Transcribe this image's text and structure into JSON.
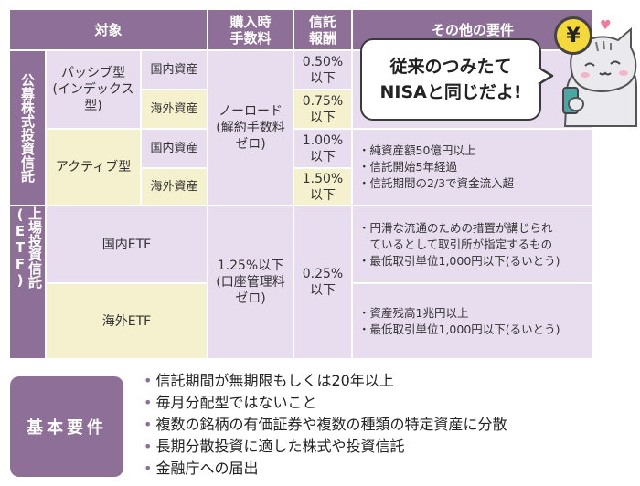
{
  "headers": {
    "target": "対象",
    "fee_line1": "購入時",
    "fee_line2": "手数料",
    "trust_line1": "信託",
    "trust_line2": "報酬",
    "other": "その他の要件"
  },
  "public_fund": {
    "label": "公募株式投資信託",
    "passive": {
      "label_line1": "パッシブ型",
      "label_line2": "(インデックス",
      "label_line3": "型)",
      "domestic": "国内資産",
      "foreign": "海外資産",
      "domestic_fee_line1": "0.50%",
      "domestic_fee_line2": "以下",
      "foreign_fee_line1": "0.75%",
      "foreign_fee_line2": "以下"
    },
    "active": {
      "label": "アクティブ型",
      "domestic": "国内資産",
      "foreign": "海外資産",
      "domestic_fee_line1": "1.00%",
      "domestic_fee_line2": "以下",
      "foreign_fee_line1": "1.50%",
      "foreign_fee_line2": "以下",
      "requirements": [
        "・純資産額50億円以上",
        "・信託開始5年経過",
        "・信託期間の2/3で資金流入超"
      ]
    },
    "purchase_fee_line1": "ノーロード",
    "purchase_fee_line2": "(解約手数料",
    "purchase_fee_line3": "ゼロ)"
  },
  "etf": {
    "label": "上場投資信託(ETF)",
    "domestic": "国内ETF",
    "foreign": "海外ETF",
    "purchase_fee_line1": "1.25%以下",
    "purchase_fee_line2": "(口座管理料",
    "purchase_fee_line3": "ゼロ)",
    "trust_fee_line1": "0.25%",
    "trust_fee_line2": "以下",
    "domestic_requirements": [
      "・円滑な流通のための措置が講じられ",
      "　ているとして取引所が指定するもの",
      "・最低取引単位1,000円以下(るいとう)"
    ],
    "foreign_requirements": [
      "・資産残高1兆円以上",
      "・最低取引単位1,000円以下(るいとう)"
    ]
  },
  "speech": {
    "line1": "従来のつみたて",
    "line2": "NISAと同じだよ!"
  },
  "mascot": {
    "coin_symbol": "¥",
    "heart_symbol": "♥"
  },
  "basic": {
    "label": "基本要件",
    "items": [
      "信託期間が無期限もしくは20年以上",
      "毎月分配型ではないこと",
      "複数の銘柄の有価証券や複数の種類の特定資産に分散",
      "長期分散投資に適した株式や投資信託",
      "金融庁への届出"
    ],
    "bullet": "•"
  },
  "colors": {
    "header": "#8e6f97",
    "lavender": "#e8dcef",
    "yellow": "#f5f0cd"
  }
}
